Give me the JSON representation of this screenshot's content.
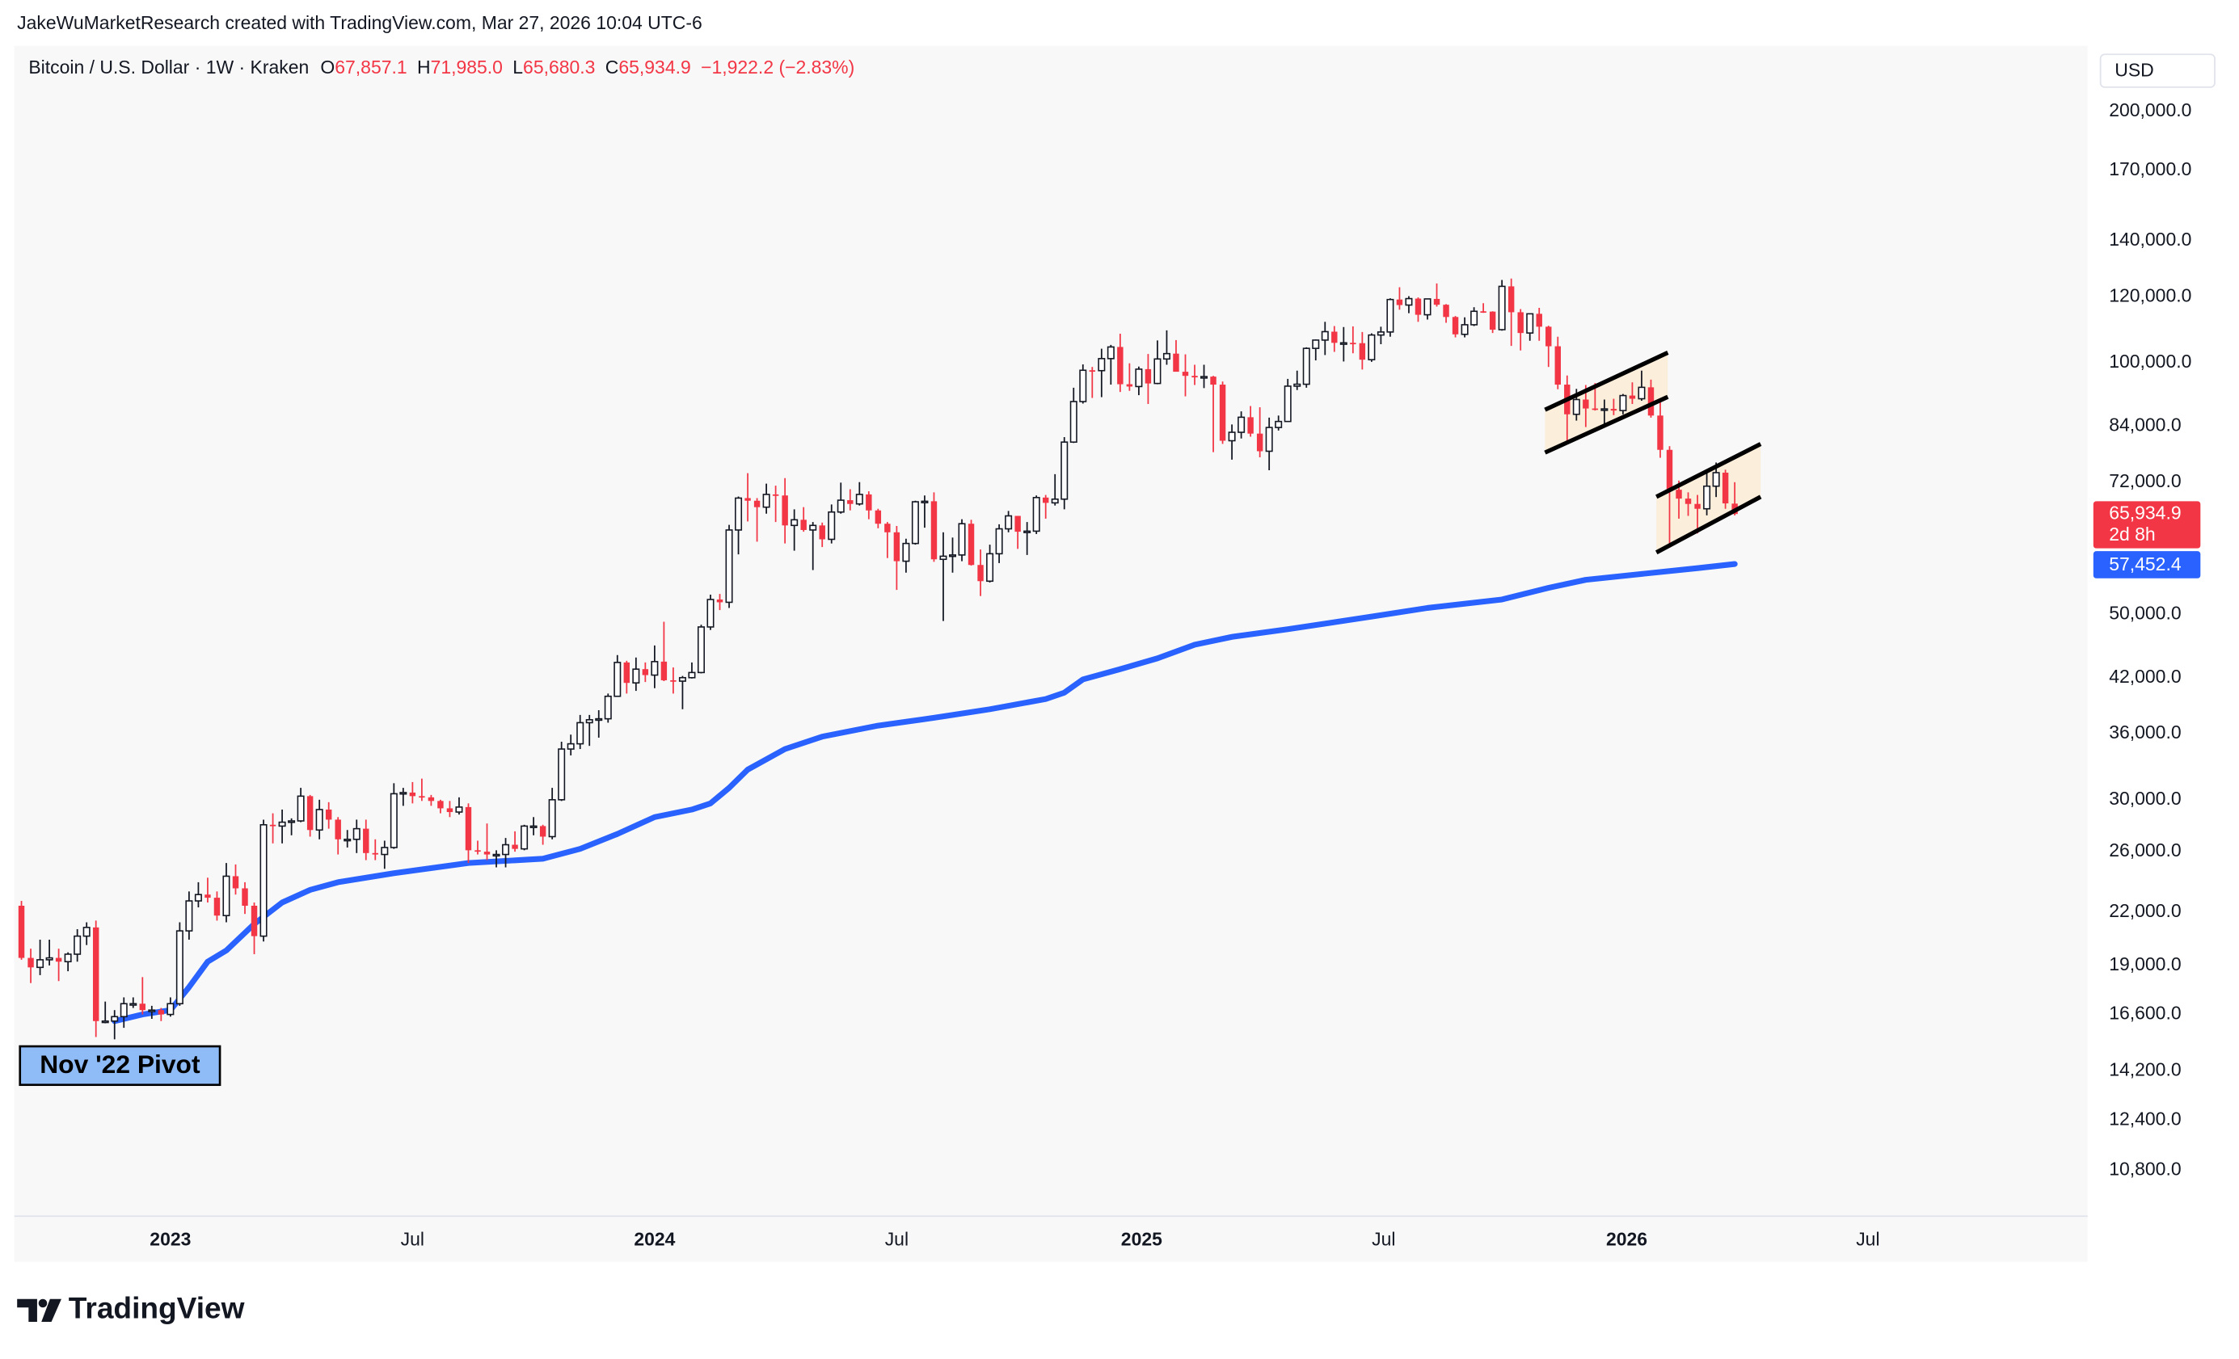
{
  "chart_data": {
    "type": "candlestick",
    "header": "JakeWuMarketResearch created with TradingView.com, Mar 27, 2026 10:04 UTC-6",
    "symbol": "Bitcoin / U.S. Dollar · 1W · Kraken",
    "ohlc_legend": [
      {
        "key": "O",
        "value": "67,857.1"
      },
      {
        "key": "H",
        "value": "71,985.0"
      },
      {
        "key": "L",
        "value": "65,680.3"
      },
      {
        "key": "C",
        "value": "65,934.9"
      }
    ],
    "change": "−1,922.2 (−2.83%)",
    "currency": "USD",
    "annotation": "Nov '22 Pivot",
    "last_price_label": "65,934.9",
    "countdown": "2d 8h",
    "ma_label": "57,452.4",
    "brand": "TradingView",
    "log_scale": true,
    "grid": false,
    "up_color": "#ffffff",
    "down_color": "#f23645",
    "ma_color": "#2962ff",
    "xlim": [
      -0.77,
      221.9
    ],
    "xticks": [
      {
        "value": 16,
        "label": "2023"
      },
      {
        "value": 42,
        "label": "Jul"
      },
      {
        "value": 68,
        "label": "2024"
      },
      {
        "value": 94,
        "label": "Jul"
      },
      {
        "value": 120.3,
        "label": "2025"
      },
      {
        "value": 146.3,
        "label": "Jul"
      },
      {
        "value": 172.4,
        "label": "2026"
      },
      {
        "value": 198.3,
        "label": "Jul"
      }
    ],
    "ylim": [
      9520,
      239700
    ],
    "yticks": [
      {
        "value": 200000,
        "label": "200,000.0"
      },
      {
        "value": 170000,
        "label": "170,000.0"
      },
      {
        "value": 140000,
        "label": "140,000.0"
      },
      {
        "value": 120000,
        "label": "120,000.0"
      },
      {
        "value": 100000,
        "label": "100,000.0"
      },
      {
        "value": 84000,
        "label": "84,000.0"
      },
      {
        "value": 72000,
        "label": "72,000.0"
      },
      {
        "value": 50000,
        "label": "50,000.0"
      },
      {
        "value": 42000,
        "label": "42,000.0"
      },
      {
        "value": 36000,
        "label": "36,000.0"
      },
      {
        "value": 30000,
        "label": "30,000.0"
      },
      {
        "value": 26000,
        "label": "26,000.0"
      },
      {
        "value": 22000,
        "label": "22,000.0"
      },
      {
        "value": 19000,
        "label": "19,000.0"
      },
      {
        "value": 16600,
        "label": "16,600.0"
      },
      {
        "value": 14200,
        "label": "14,200.0"
      },
      {
        "value": 12400,
        "label": "12,400.0"
      },
      {
        "value": 10800,
        "label": "10,800.0"
      }
    ],
    "candles": [
      [
        22400,
        22700,
        19300,
        19400
      ],
      [
        19400,
        19900,
        18100,
        18900
      ],
      [
        18900,
        20400,
        18500,
        19300
      ],
      [
        19300,
        20400,
        19000,
        19400
      ],
      [
        19400,
        19900,
        18200,
        19200
      ],
      [
        19200,
        19700,
        18700,
        19600
      ],
      [
        19600,
        21000,
        19200,
        20600
      ],
      [
        20600,
        21400,
        20100,
        21100
      ],
      [
        21100,
        21500,
        15600,
        16300
      ],
      [
        16300,
        17200,
        16200,
        16300
      ],
      [
        16300,
        16800,
        15500,
        16500
      ],
      [
        16500,
        17400,
        16000,
        17100
      ],
      [
        17100,
        17400,
        16900,
        17100
      ],
      [
        17100,
        18400,
        16600,
        16800
      ],
      [
        16800,
        17000,
        16400,
        16800
      ],
      [
        16800,
        16900,
        16300,
        16600
      ],
      [
        16600,
        17400,
        16500,
        17100
      ],
      [
        17100,
        21400,
        17000,
        20900
      ],
      [
        20900,
        23300,
        20400,
        22700
      ],
      [
        22700,
        23900,
        22300,
        23100
      ],
      [
        23100,
        24200,
        22600,
        22900
      ],
      [
        22900,
        23300,
        21500,
        21800
      ],
      [
        21800,
        25200,
        21400,
        24300
      ],
      [
        24300,
        25100,
        23100,
        23500
      ],
      [
        23500,
        23900,
        21900,
        22400
      ],
      [
        22400,
        22600,
        19600,
        20600
      ],
      [
        20600,
        28400,
        20300,
        28000
      ],
      [
        28000,
        28900,
        26600,
        27900
      ],
      [
        27900,
        29200,
        26600,
        28200
      ],
      [
        28200,
        28500,
        27200,
        28300
      ],
      [
        28300,
        31000,
        28200,
        30300
      ],
      [
        30300,
        30400,
        27100,
        27600
      ],
      [
        27600,
        30000,
        26900,
        29200
      ],
      [
        29200,
        29800,
        27700,
        28400
      ],
      [
        28400,
        28600,
        25800,
        26900
      ],
      [
        26900,
        27600,
        26300,
        26900
      ],
      [
        26900,
        28400,
        25900,
        27700
      ],
      [
        27700,
        28400,
        25400,
        25900
      ],
      [
        25900,
        26900,
        25400,
        25800
      ],
      [
        25800,
        26800,
        24800,
        26300
      ],
      [
        26300,
        31400,
        26200,
        30500
      ],
      [
        30500,
        31000,
        29500,
        30600
      ],
      [
        30600,
        31500,
        29700,
        30300
      ],
      [
        30300,
        31800,
        29900,
        30200
      ],
      [
        30200,
        30400,
        29500,
        29900
      ],
      [
        29900,
        30000,
        28900,
        29300
      ],
      [
        29300,
        29900,
        28600,
        29000
      ],
      [
        29000,
        30200,
        28800,
        29400
      ],
      [
        29400,
        29700,
        25200,
        26100
      ],
      [
        26100,
        26800,
        25800,
        26000
      ],
      [
        26000,
        28100,
        25400,
        25800
      ],
      [
        25800,
        26100,
        24900,
        25800
      ],
      [
        25800,
        27000,
        24900,
        26500
      ],
      [
        26500,
        27500,
        26000,
        26200
      ],
      [
        26200,
        28000,
        26100,
        27900
      ],
      [
        27900,
        28600,
        27200,
        27900
      ],
      [
        27900,
        28000,
        26500,
        27100
      ],
      [
        27100,
        31000,
        26900,
        30000
      ],
      [
        30000,
        35200,
        29900,
        34500
      ],
      [
        34500,
        35900,
        33900,
        35000
      ],
      [
        35000,
        37900,
        34500,
        37100
      ],
      [
        37100,
        37900,
        34800,
        37400
      ],
      [
        37400,
        38400,
        35600,
        37500
      ],
      [
        37500,
        40200,
        37100,
        39900
      ],
      [
        39900,
        44700,
        39900,
        43800
      ],
      [
        43800,
        44000,
        40200,
        41400
      ],
      [
        41400,
        44400,
        40500,
        43000
      ],
      [
        43000,
        43800,
        41500,
        42300
      ],
      [
        42300,
        45900,
        40800,
        43900
      ],
      [
        43900,
        49000,
        41600,
        41700
      ],
      [
        41700,
        43200,
        40200,
        41600
      ],
      [
        41600,
        42200,
        38500,
        42000
      ],
      [
        42000,
        43800,
        41900,
        42600
      ],
      [
        42600,
        48600,
        42500,
        48300
      ],
      [
        48300,
        52800,
        47900,
        52100
      ],
      [
        52100,
        52900,
        50600,
        51700
      ],
      [
        51700,
        64000,
        50900,
        63100
      ],
      [
        63100,
        69200,
        59000,
        68900
      ],
      [
        68900,
        73800,
        64600,
        68400
      ],
      [
        68400,
        68900,
        61100,
        67200
      ],
      [
        67200,
        71700,
        66000,
        69600
      ],
      [
        69600,
        71300,
        64500,
        69400
      ],
      [
        69400,
        72800,
        60800,
        63900
      ],
      [
        63900,
        66800,
        59600,
        64900
      ],
      [
        64900,
        67200,
        62800,
        63100
      ],
      [
        63100,
        64500,
        56500,
        63900
      ],
      [
        63900,
        64400,
        60200,
        61500
      ],
      [
        61500,
        67700,
        60800,
        66300
      ],
      [
        66300,
        71900,
        66000,
        68500
      ],
      [
        68500,
        70600,
        66600,
        67800
      ],
      [
        67800,
        72000,
        67500,
        69600
      ],
      [
        69600,
        70200,
        65000,
        66600
      ],
      [
        66600,
        66900,
        63400,
        64200
      ],
      [
        64200,
        64500,
        58400,
        62700
      ],
      [
        62700,
        63800,
        53500,
        57900
      ],
      [
        57900,
        61600,
        56100,
        60800
      ],
      [
        60800,
        68400,
        60600,
        68200
      ],
      [
        68200,
        69400,
        63500,
        68300
      ],
      [
        68300,
        70000,
        57800,
        58200
      ],
      [
        58200,
        62700,
        49100,
        58700
      ],
      [
        58700,
        61800,
        56100,
        58900
      ],
      [
        58900,
        65000,
        57900,
        64200
      ],
      [
        64200,
        64900,
        57200,
        57300
      ],
      [
        57300,
        59800,
        52600,
        54800
      ],
      [
        54800,
        60600,
        54600,
        59100
      ],
      [
        59100,
        64100,
        57600,
        63300
      ],
      [
        63300,
        66500,
        62700,
        65600
      ],
      [
        65600,
        65600,
        59900,
        62800
      ],
      [
        62800,
        64500,
        58900,
        62900
      ],
      [
        62900,
        69400,
        62400,
        69000
      ],
      [
        69000,
        69500,
        65100,
        68000
      ],
      [
        68000,
        73600,
        67500,
        68700
      ],
      [
        68700,
        81500,
        66800,
        80400
      ],
      [
        80400,
        93400,
        80200,
        89900
      ],
      [
        89900,
        99600,
        89400,
        98000
      ],
      [
        98000,
        98900,
        90800,
        97900
      ],
      [
        97900,
        104000,
        91000,
        101200
      ],
      [
        101200,
        105100,
        94200,
        104500
      ],
      [
        104500,
        108400,
        92300,
        94300
      ],
      [
        94300,
        99900,
        92600,
        93700
      ],
      [
        93700,
        99000,
        91500,
        98300
      ],
      [
        98300,
        102500,
        89300,
        94500
      ],
      [
        94500,
        106400,
        94300,
        101100
      ],
      [
        101100,
        109400,
        99500,
        102600
      ],
      [
        102600,
        106500,
        97800,
        97600
      ],
      [
        97600,
        102400,
        91200,
        96500
      ],
      [
        96500,
        99500,
        94100,
        96100
      ],
      [
        96100,
        99500,
        93300,
        96300
      ],
      [
        96300,
        96500,
        78200,
        94200
      ],
      [
        94200,
        95000,
        80000,
        80700
      ],
      [
        80700,
        84400,
        76600,
        82600
      ],
      [
        82600,
        87500,
        81200,
        86100
      ],
      [
        86100,
        88800,
        81600,
        82300
      ],
      [
        82300,
        88500,
        77100,
        78400
      ],
      [
        78400,
        86000,
        74400,
        83700
      ],
      [
        83700,
        86500,
        83000,
        85100
      ],
      [
        85100,
        95700,
        85100,
        93800
      ],
      [
        93800,
        97900,
        92800,
        94300
      ],
      [
        94300,
        104400,
        93400,
        104100
      ],
      [
        104100,
        106700,
        100700,
        106500
      ],
      [
        106500,
        112000,
        102200,
        109000
      ],
      [
        109000,
        110700,
        103100,
        105700
      ],
      [
        105700,
        110400,
        100400,
        105700
      ],
      [
        105700,
        110600,
        102700,
        105600
      ],
      [
        105600,
        108900,
        98200,
        100900
      ],
      [
        100900,
        108500,
        100300,
        108000
      ],
      [
        108000,
        110500,
        105300,
        108900
      ],
      [
        108900,
        119500,
        107500,
        119100
      ],
      [
        119100,
        123200,
        115800,
        117300
      ],
      [
        117300,
        120200,
        114700,
        119400
      ],
      [
        119400,
        119800,
        112000,
        114200
      ],
      [
        114200,
        119300,
        112700,
        119300
      ],
      [
        119300,
        124500,
        116800,
        117400
      ],
      [
        117400,
        117600,
        111700,
        113500
      ],
      [
        113500,
        113800,
        107300,
        108200
      ],
      [
        108200,
        113400,
        107300,
        111100
      ],
      [
        111100,
        116600,
        110700,
        115300
      ],
      [
        115300,
        117900,
        114800,
        115200
      ],
      [
        115200,
        115300,
        108600,
        109600
      ],
      [
        109600,
        125700,
        109300,
        123500
      ],
      [
        123500,
        126200,
        104800,
        115000
      ],
      [
        115000,
        116000,
        103500,
        108600
      ],
      [
        108600,
        114600,
        106300,
        114500
      ],
      [
        114500,
        116400,
        106300,
        110500
      ],
      [
        110500,
        110800,
        98900,
        104700
      ],
      [
        104700,
        107500,
        93000,
        94200
      ],
      [
        94200,
        96600,
        80600,
        86800
      ],
      [
        86800,
        93100,
        85300,
        90400
      ],
      [
        90400,
        94100,
        83800,
        88200
      ],
      [
        88200,
        94600,
        87700,
        88100
      ],
      [
        88100,
        90400,
        84400,
        88100
      ],
      [
        88100,
        90600,
        86600,
        87700
      ],
      [
        87700,
        91800,
        86800,
        91400
      ],
      [
        91400,
        94800,
        89300,
        90600
      ],
      [
        90600,
        97900,
        90100,
        93500
      ],
      [
        93500,
        95500,
        86000,
        86500
      ],
      [
        86500,
        90500,
        77000,
        78700
      ],
      [
        78700,
        79500,
        60100,
        70500
      ],
      [
        70500,
        72300,
        65100,
        68800
      ],
      [
        68800,
        70000,
        65600,
        67800
      ],
      [
        67800,
        69500,
        62500,
        66900
      ],
      [
        66900,
        74000,
        65700,
        71200
      ],
      [
        71200,
        76000,
        69100,
        73900
      ],
      [
        73900,
        74500,
        66900,
        67900
      ],
      [
        67857.1,
        71985,
        65680.3,
        65934.9
      ]
    ],
    "ma": {
      "x": [
        10,
        13,
        16,
        18,
        20,
        22,
        25,
        28,
        31,
        34,
        40,
        48,
        56,
        60,
        64,
        68,
        72,
        74,
        76,
        78,
        82,
        86,
        92,
        98,
        104,
        110,
        112,
        114,
        118,
        122,
        126,
        130,
        136,
        145,
        151,
        159,
        164,
        168,
        174,
        180,
        184
      ],
      "values": [
        16300,
        16600,
        16800,
        17900,
        19200,
        19800,
        21300,
        22600,
        23400,
        23900,
        24500,
        25200,
        25500,
        26200,
        27300,
        28600,
        29200,
        29700,
        31000,
        32600,
        34500,
        35700,
        36800,
        37600,
        38500,
        39600,
        40300,
        41800,
        43000,
        44300,
        46000,
        47000,
        48000,
        49700,
        50900,
        52100,
        53800,
        55000,
        55900,
        56800,
        57452.4
      ]
    }
  }
}
